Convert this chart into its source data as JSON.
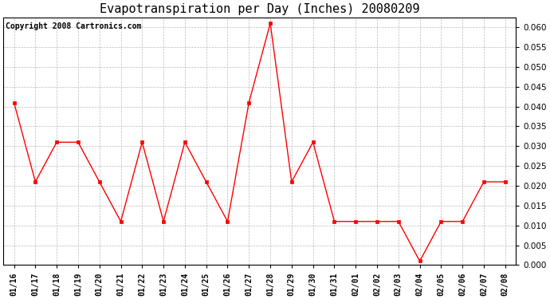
{
  "title": "Evapotranspiration per Day (Inches) 20080209",
  "copyright": "Copyright 2008 Cartronics.com",
  "dates": [
    "01/16",
    "01/17",
    "01/18",
    "01/19",
    "01/20",
    "01/21",
    "01/22",
    "01/23",
    "01/24",
    "01/25",
    "01/26",
    "01/27",
    "01/28",
    "01/29",
    "01/30",
    "01/31",
    "02/01",
    "02/02",
    "02/03",
    "02/04",
    "02/05",
    "02/06",
    "02/07",
    "02/08"
  ],
  "values": [
    0.041,
    0.021,
    0.031,
    0.031,
    0.021,
    0.011,
    0.031,
    0.011,
    0.031,
    0.021,
    0.011,
    0.041,
    0.061,
    0.021,
    0.031,
    0.011,
    0.011,
    0.011,
    0.011,
    0.001,
    0.011,
    0.011,
    0.021,
    0.021
  ],
  "ylim": [
    0.0,
    0.0625
  ],
  "yticks": [
    0.0,
    0.005,
    0.01,
    0.015,
    0.02,
    0.025,
    0.03,
    0.035,
    0.04,
    0.045,
    0.05,
    0.055,
    0.06
  ],
  "line_color": "red",
  "marker": "s",
  "marker_size": 3,
  "bg_color": "white",
  "grid_color": "#bbbbbb",
  "title_fontsize": 11,
  "copyright_fontsize": 7,
  "tick_fontsize": 7.5,
  "xtick_fontsize": 7
}
